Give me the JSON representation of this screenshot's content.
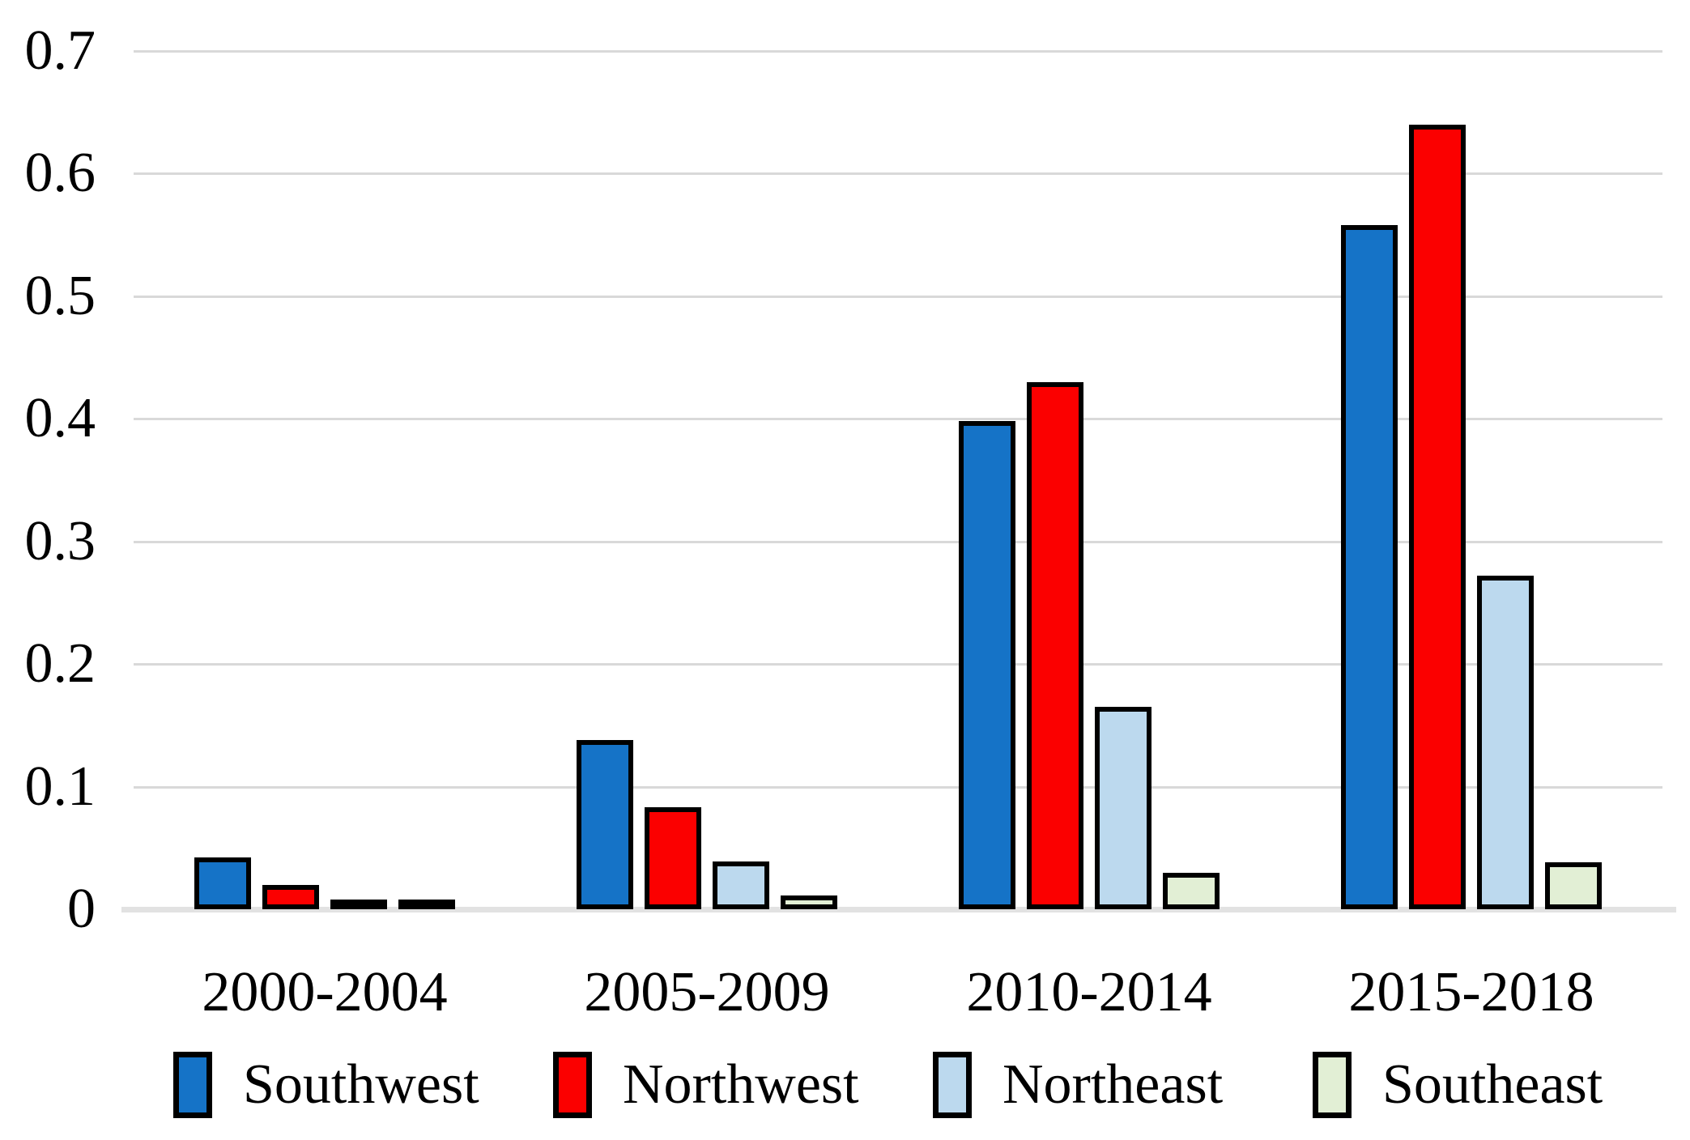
{
  "chart_data": {
    "type": "bar",
    "title": "",
    "xlabel": "",
    "ylabel": "",
    "categories": [
      "2000-2004",
      "2005-2009",
      "2010-2014",
      "2015-2018"
    ],
    "series": [
      {
        "name": "Southwest",
        "color": "#1573C7",
        "values": [
          0.042,
          0.138,
          0.398,
          0.558
        ]
      },
      {
        "name": "Northwest",
        "color": "#FB0000",
        "values": [
          0.02,
          0.083,
          0.43,
          0.64
        ]
      },
      {
        "name": "Northeast",
        "color": "#BCD9EE",
        "values": [
          0.008,
          0.039,
          0.165,
          0.272
        ]
      },
      {
        "name": "Southeast",
        "color": "#E2EFD5",
        "values": [
          0.002,
          0.011,
          0.03,
          0.038
        ]
      }
    ],
    "yticks": [
      0,
      0.1,
      0.2,
      0.3,
      0.4,
      0.5,
      0.6,
      0.7
    ],
    "ytick_labels": [
      "0",
      "0.1",
      "0.2",
      "0.3",
      "0.4",
      "0.5",
      "0.6",
      "0.7"
    ],
    "ylim": [
      0,
      0.7
    ],
    "grid": "horizontal",
    "legend_position": "bottom",
    "colors": {
      "bar_border": "#000000",
      "gridline": "#D9D9D9",
      "axis_line": "#E2E2E2",
      "background": "#FFFFFF",
      "text": "#000000"
    }
  }
}
